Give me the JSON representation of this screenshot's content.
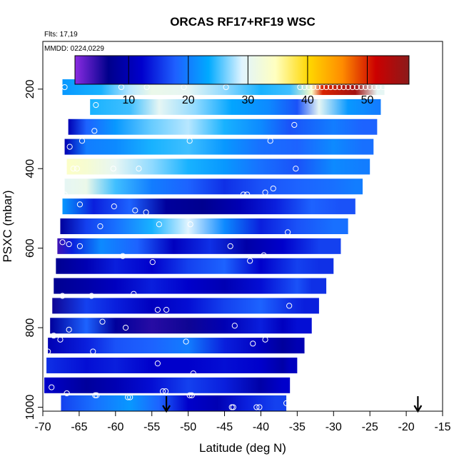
{
  "chart_data": {
    "type": "heatmap",
    "title": "ORCAS RF17+RF19 WSC",
    "flights_label": "Flts: 17,19",
    "dates_label": "MMDD: 0224,0229",
    "xlabel": "Latitude (deg N)",
    "ylabel": "PSXC (mbar)",
    "xlim": [
      -70,
      -15
    ],
    "ylim": [
      1010,
      80
    ],
    "x_ticks": [
      -70,
      -65,
      -60,
      -55,
      -50,
      -45,
      -40,
      -35,
      -30,
      -25,
      -20,
      -15
    ],
    "y_ticks": [
      200,
      400,
      600,
      800,
      1000
    ],
    "colorbar": {
      "range": [
        1,
        57
      ],
      "ticks": [
        10,
        20,
        30,
        40,
        50
      ],
      "colors": [
        "#8a2be2",
        "#00008b",
        "#0000cd",
        "#1e60ff",
        "#00aaff",
        "#e0f4ff",
        "#ffffc0",
        "#ffd700",
        "#ff8c00",
        "#cc0000",
        "#8b1a1a"
      ]
    },
    "bands": [
      {
        "p": 195,
        "lat_min": -67.3,
        "lat_max": -23.0,
        "cols": [
          [
            -67.3,
            22
          ],
          [
            -62,
            24
          ],
          [
            -58,
            28
          ],
          [
            -55,
            31
          ],
          [
            -50,
            30
          ],
          [
            -45,
            27
          ],
          [
            -40,
            24
          ],
          [
            -36,
            25
          ],
          [
            -33,
            34
          ],
          [
            -31.5,
            50
          ],
          [
            -27,
            55
          ],
          [
            -24,
            30
          ]
        ]
      },
      {
        "p": 245,
        "lat_min": -63.5,
        "lat_max": -23.5,
        "cols": [
          [
            -63.5,
            24
          ],
          [
            -58,
            25
          ],
          [
            -54,
            30
          ],
          [
            -49,
            27
          ],
          [
            -44,
            23
          ],
          [
            -39,
            21
          ],
          [
            -35,
            17
          ],
          [
            -32,
            30
          ],
          [
            -28,
            22
          ],
          [
            -24,
            20
          ]
        ]
      },
      {
        "p": 295,
        "lat_min": -66.5,
        "lat_max": -24.0,
        "cols": [
          [
            -66.5,
            10
          ],
          [
            -64,
            18
          ],
          [
            -60,
            22
          ],
          [
            -55,
            26
          ],
          [
            -50,
            28
          ],
          [
            -45,
            24
          ],
          [
            -40,
            21
          ],
          [
            -36,
            17
          ],
          [
            -30,
            20
          ],
          [
            -26,
            18
          ]
        ]
      },
      {
        "p": 345,
        "lat_min": -67.0,
        "lat_max": -24.5,
        "cols": [
          [
            -67,
            10
          ],
          [
            -64,
            20
          ],
          [
            -60,
            21
          ],
          [
            -55,
            24
          ],
          [
            -50,
            25
          ],
          [
            -45,
            22
          ],
          [
            -40,
            19
          ],
          [
            -35,
            18
          ],
          [
            -30,
            21
          ],
          [
            -26,
            19
          ]
        ]
      },
      {
        "p": 395,
        "lat_min": -66.7,
        "lat_max": -25.0,
        "cols": [
          [
            -66.7,
            34
          ],
          [
            -64,
            33
          ],
          [
            -60,
            30
          ],
          [
            -55,
            27
          ],
          [
            -50,
            24
          ],
          [
            -45,
            22
          ],
          [
            -40,
            19
          ],
          [
            -35,
            17
          ],
          [
            -30,
            21
          ],
          [
            -26,
            20
          ]
        ]
      },
      {
        "p": 445,
        "lat_min": -67.0,
        "lat_max": -26.0,
        "cols": [
          [
            -67,
            30
          ],
          [
            -64,
            31
          ],
          [
            -60,
            25
          ],
          [
            -55,
            20
          ],
          [
            -50,
            18
          ],
          [
            -45,
            15
          ],
          [
            -40,
            17
          ],
          [
            -35,
            18
          ],
          [
            -30,
            19
          ],
          [
            -27,
            20
          ]
        ]
      },
      {
        "p": 495,
        "lat_min": -67.3,
        "lat_max": -27.0,
        "cols": [
          [
            -67.3,
            22
          ],
          [
            -63,
            14
          ],
          [
            -58,
            18
          ],
          [
            -53,
            8
          ],
          [
            -48,
            7
          ],
          [
            -43,
            10
          ],
          [
            -38,
            14
          ],
          [
            -33,
            18
          ],
          [
            -29,
            17
          ]
        ]
      },
      {
        "p": 545,
        "lat_min": -67.6,
        "lat_max": -28.0,
        "cols": [
          [
            -67.6,
            8
          ],
          [
            -64,
            16
          ],
          [
            -60,
            19
          ],
          [
            -55,
            24
          ],
          [
            -50,
            29
          ],
          [
            -45,
            21
          ],
          [
            -40,
            14
          ],
          [
            -35,
            17
          ],
          [
            -30,
            19
          ]
        ]
      },
      {
        "p": 595,
        "lat_min": -68.0,
        "lat_max": -29.0,
        "cols": [
          [
            -68,
            4
          ],
          [
            -66,
            14
          ],
          [
            -62,
            21
          ],
          [
            -57,
            18
          ],
          [
            -52,
            11
          ],
          [
            -47,
            15
          ],
          [
            -42,
            9
          ],
          [
            -37,
            12
          ],
          [
            -32,
            16
          ]
        ]
      },
      {
        "p": 645,
        "lat_min": -68.2,
        "lat_max": -30.0,
        "cols": [
          [
            -68.2,
            7
          ],
          [
            -64,
            10
          ],
          [
            -60,
            14
          ],
          [
            -55,
            12
          ],
          [
            -50,
            16
          ],
          [
            -45,
            18
          ],
          [
            -40,
            12
          ],
          [
            -35,
            16
          ],
          [
            -32,
            15
          ]
        ]
      },
      {
        "p": 695,
        "lat_min": -68.5,
        "lat_max": -31.0,
        "cols": [
          [
            -68.5,
            7
          ],
          [
            -64,
            9
          ],
          [
            -60,
            11
          ],
          [
            -55,
            14
          ],
          [
            -50,
            12
          ],
          [
            -45,
            10
          ],
          [
            -40,
            13
          ],
          [
            -35,
            17
          ],
          [
            -33,
            15
          ]
        ]
      },
      {
        "p": 745,
        "lat_min": -68.7,
        "lat_max": -32.0,
        "cols": [
          [
            -68.7,
            6
          ],
          [
            -64,
            16
          ],
          [
            -60,
            14
          ],
          [
            -55,
            11
          ],
          [
            -50,
            13
          ],
          [
            -45,
            16
          ],
          [
            -40,
            18
          ],
          [
            -36,
            15
          ],
          [
            -34,
            14
          ]
        ]
      },
      {
        "p": 795,
        "lat_min": -69.0,
        "lat_max": -33.0,
        "cols": [
          [
            -69,
            8
          ],
          [
            -64,
            18
          ],
          [
            -60,
            8
          ],
          [
            -55,
            5
          ],
          [
            -50,
            6
          ],
          [
            -45,
            10
          ],
          [
            -40,
            14
          ],
          [
            -37,
            11
          ],
          [
            -35,
            13
          ]
        ]
      },
      {
        "p": 845,
        "lat_min": -69.3,
        "lat_max": -34.0,
        "cols": [
          [
            -69.3,
            10
          ],
          [
            -64,
            14
          ],
          [
            -60,
            17
          ],
          [
            -55,
            18
          ],
          [
            -50,
            20
          ],
          [
            -45,
            14
          ],
          [
            -40,
            11
          ],
          [
            -37,
            8
          ],
          [
            -35,
            10
          ]
        ]
      },
      {
        "p": 895,
        "lat_min": -69.5,
        "lat_max": -35.0,
        "cols": [
          [
            -69.5,
            15
          ],
          [
            -64,
            13
          ],
          [
            -60,
            14
          ],
          [
            -55,
            12
          ],
          [
            -50,
            12
          ],
          [
            -45,
            13
          ],
          [
            -40,
            12
          ],
          [
            -37,
            9
          ],
          [
            -36,
            11
          ]
        ]
      },
      {
        "p": 945,
        "lat_min": -69.8,
        "lat_max": -36.0,
        "cols": [
          [
            -69.8,
            12
          ],
          [
            -64,
            8
          ],
          [
            -60,
            10
          ],
          [
            -55,
            13
          ],
          [
            -50,
            16
          ],
          [
            -45,
            14
          ],
          [
            -40,
            9
          ],
          [
            -37,
            12
          ]
        ]
      },
      {
        "p": 990,
        "lat_min": -67.5,
        "lat_max": -36.5,
        "cols": [
          [
            -67.5,
            16
          ],
          [
            -63,
            19
          ],
          [
            -58,
            22
          ],
          [
            -54,
            18
          ],
          [
            -50,
            12
          ],
          [
            -46,
            10
          ],
          [
            -42,
            14
          ],
          [
            -38,
            16
          ]
        ]
      }
    ],
    "points": [
      [
        -67.0,
        195
      ],
      [
        -59.2,
        195
      ],
      [
        -55.7,
        195
      ],
      [
        -50.6,
        195
      ],
      [
        -44.8,
        195
      ],
      [
        -34.6,
        195
      ],
      [
        -34.0,
        195
      ],
      [
        -33.4,
        195
      ],
      [
        -32.8,
        195
      ],
      [
        -32.2,
        195
      ],
      [
        -31.6,
        195
      ],
      [
        -31.0,
        195
      ],
      [
        -30.4,
        195
      ],
      [
        -29.8,
        195
      ],
      [
        -29.2,
        195
      ],
      [
        -28.6,
        195
      ],
      [
        -28.0,
        195
      ],
      [
        -27.4,
        195
      ],
      [
        -26.8,
        195
      ],
      [
        -26.2,
        195
      ],
      [
        -25.6,
        195
      ],
      [
        -25.0,
        195
      ],
      [
        -24.4,
        195
      ],
      [
        -23.8,
        195
      ],
      [
        -23.2,
        195
      ],
      [
        -62.7,
        240
      ],
      [
        -64.6,
        330
      ],
      [
        -62.9,
        305
      ],
      [
        -66.3,
        345
      ],
      [
        -49.8,
        330
      ],
      [
        -38.7,
        330
      ],
      [
        -35.4,
        290
      ],
      [
        -65.3,
        400
      ],
      [
        -65.8,
        400
      ],
      [
        -60.3,
        400
      ],
      [
        -56.8,
        400
      ],
      [
        -35.2,
        400
      ],
      [
        -67.0,
        465
      ],
      [
        -42.4,
        465
      ],
      [
        -41.9,
        465
      ],
      [
        -39.4,
        460
      ],
      [
        -38.3,
        450
      ],
      [
        -64.9,
        490
      ],
      [
        -60.2,
        495
      ],
      [
        -57.3,
        505
      ],
      [
        -55.8,
        510
      ],
      [
        -62.1,
        545
      ],
      [
        -54.0,
        540
      ],
      [
        -49.7,
        540
      ],
      [
        -36.3,
        560
      ],
      [
        -67.3,
        585
      ],
      [
        -66.4,
        590
      ],
      [
        -64.9,
        595
      ],
      [
        -59.0,
        620
      ],
      [
        -54.9,
        635
      ],
      [
        -44.2,
        595
      ],
      [
        -39.6,
        618
      ],
      [
        -41.5,
        632
      ],
      [
        -67.3,
        720
      ],
      [
        -63.3,
        720
      ],
      [
        -57.5,
        715
      ],
      [
        -54.2,
        755
      ],
      [
        -53.0,
        755
      ],
      [
        -36.1,
        745
      ],
      [
        -68.5,
        820
      ],
      [
        -67.6,
        830
      ],
      [
        -66.4,
        805
      ],
      [
        -61.8,
        785
      ],
      [
        -58.6,
        800
      ],
      [
        -43.6,
        795
      ],
      [
        -50.3,
        835
      ],
      [
        -41.1,
        840
      ],
      [
        -39.4,
        830
      ],
      [
        -69.3,
        860
      ],
      [
        -63.1,
        860
      ],
      [
        -54.2,
        890
      ],
      [
        -49.3,
        915
      ],
      [
        -68.8,
        950
      ],
      [
        -66.7,
        965
      ],
      [
        -62.8,
        970
      ],
      [
        -62.6,
        970
      ],
      [
        -58.3,
        975
      ],
      [
        -58.0,
        975
      ],
      [
        -53.5,
        960
      ],
      [
        -53.1,
        960
      ],
      [
        -49.8,
        970
      ],
      [
        -49.5,
        970
      ],
      [
        -44.0,
        1000
      ],
      [
        -43.8,
        1000
      ],
      [
        -40.6,
        1000
      ],
      [
        -40.2,
        1000
      ],
      [
        -36.5,
        990
      ]
    ],
    "arrows_lat": [
      -53.0,
      -18.4
    ]
  }
}
